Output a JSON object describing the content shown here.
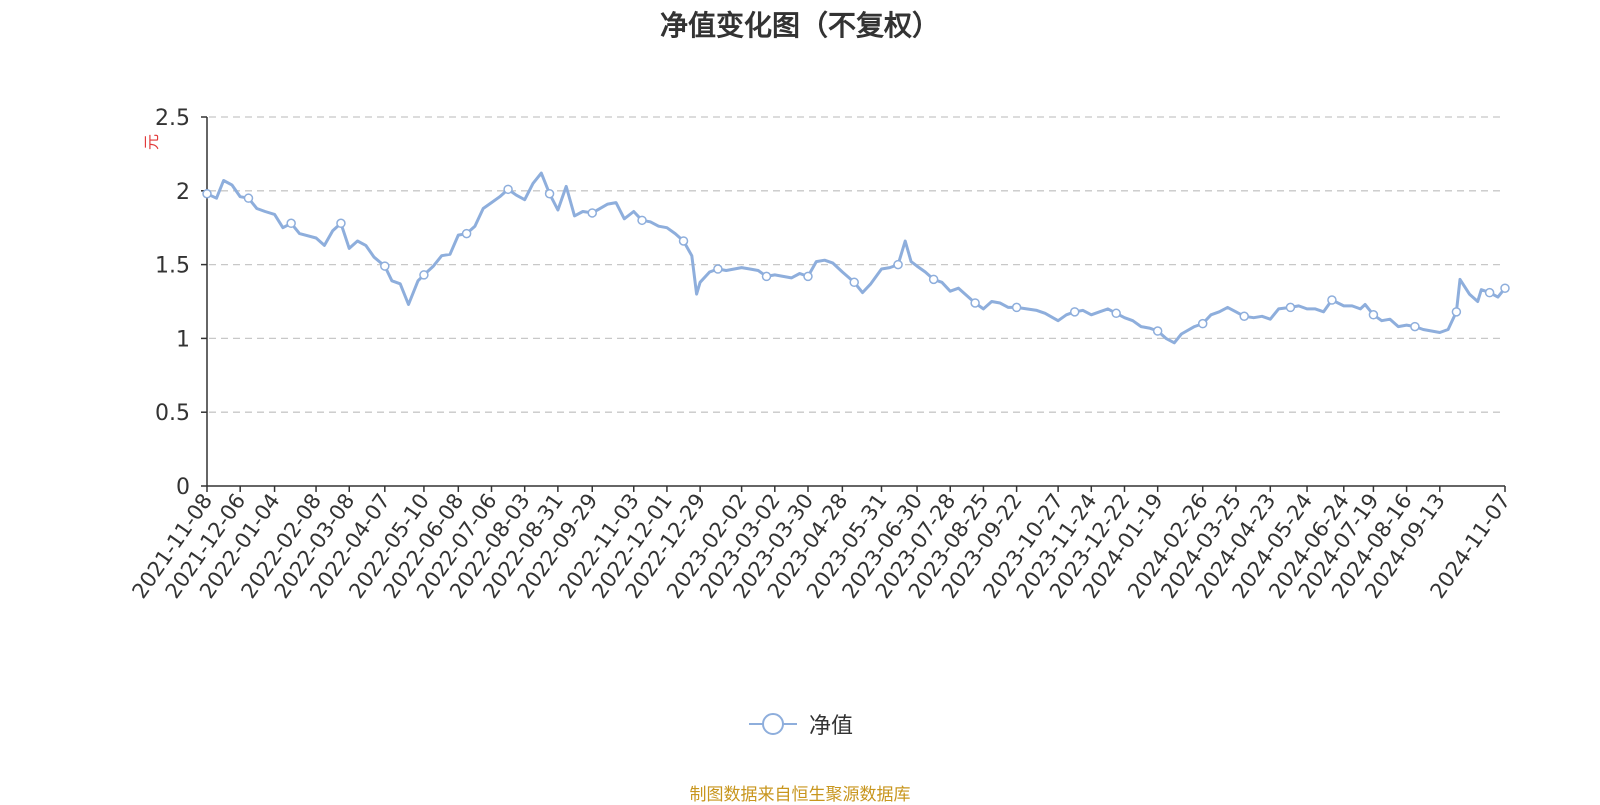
{
  "chart_data": {
    "type": "line",
    "title": "净值变化图（不复权）",
    "ylabel": "元",
    "ylim": [
      0,
      2.5
    ],
    "yticks": [
      "0",
      "0.5",
      "1",
      "1.5",
      "2",
      "2.5"
    ],
    "grid": true,
    "legend_position": "bottom",
    "x_tick_labels": [
      "2021-11-08",
      "2021-12-06",
      "2022-01-04",
      "2022-02-08",
      "2022-03-08",
      "2022-04-07",
      "2022-05-10",
      "2022-06-08",
      "2022-07-06",
      "2022-08-03",
      "2022-08-31",
      "2022-09-29",
      "2022-11-03",
      "2022-12-01",
      "2022-12-29",
      "2023-02-02",
      "2023-03-02",
      "2023-03-30",
      "2023-04-28",
      "2023-05-31",
      "2023-06-30",
      "2023-07-28",
      "2023-08-25",
      "2023-09-22",
      "2023-10-27",
      "2023-11-24",
      "2023-12-22",
      "2024-01-19",
      "2024-02-26",
      "2024-03-25",
      "2024-04-23",
      "2024-05-24",
      "2024-06-24",
      "2024-07-19",
      "2024-08-16",
      "2024-09-13",
      "2024-11-07"
    ],
    "series": [
      {
        "name": "净值",
        "color": "#8eaedc",
        "points": [
          [
            "2021-11-08",
            1.98
          ],
          [
            "2021-11-16",
            1.95
          ],
          [
            "2021-11-22",
            2.07
          ],
          [
            "2021-11-29",
            2.04
          ],
          [
            "2021-12-06",
            1.96
          ],
          [
            "2021-12-13",
            1.95
          ],
          [
            "2021-12-20",
            1.88
          ],
          [
            "2021-12-27",
            1.86
          ],
          [
            "2022-01-04",
            1.84
          ],
          [
            "2022-01-11",
            1.75
          ],
          [
            "2022-01-18",
            1.78
          ],
          [
            "2022-01-25",
            1.71
          ],
          [
            "2022-02-08",
            1.68
          ],
          [
            "2022-02-15",
            1.63
          ],
          [
            "2022-02-22",
            1.73
          ],
          [
            "2022-03-01",
            1.78
          ],
          [
            "2022-03-08",
            1.61
          ],
          [
            "2022-03-15",
            1.66
          ],
          [
            "2022-03-22",
            1.63
          ],
          [
            "2022-03-29",
            1.55
          ],
          [
            "2022-04-07",
            1.49
          ],
          [
            "2022-04-13",
            1.39
          ],
          [
            "2022-04-20",
            1.37
          ],
          [
            "2022-04-27",
            1.23
          ],
          [
            "2022-05-05",
            1.39
          ],
          [
            "2022-05-10",
            1.43
          ],
          [
            "2022-05-18",
            1.49
          ],
          [
            "2022-05-25",
            1.56
          ],
          [
            "2022-06-01",
            1.57
          ],
          [
            "2022-06-08",
            1.7
          ],
          [
            "2022-06-15",
            1.71
          ],
          [
            "2022-06-22",
            1.76
          ],
          [
            "2022-06-29",
            1.88
          ],
          [
            "2022-07-06",
            1.92
          ],
          [
            "2022-07-13",
            1.96
          ],
          [
            "2022-07-20",
            2.01
          ],
          [
            "2022-07-27",
            1.97
          ],
          [
            "2022-08-03",
            1.94
          ],
          [
            "2022-08-10",
            2.05
          ],
          [
            "2022-08-17",
            2.12
          ],
          [
            "2022-08-24",
            1.98
          ],
          [
            "2022-08-31",
            1.87
          ],
          [
            "2022-09-07",
            2.03
          ],
          [
            "2022-09-14",
            1.83
          ],
          [
            "2022-09-21",
            1.86
          ],
          [
            "2022-09-29",
            1.85
          ],
          [
            "2022-10-12",
            1.91
          ],
          [
            "2022-10-19",
            1.92
          ],
          [
            "2022-10-26",
            1.81
          ],
          [
            "2022-11-03",
            1.86
          ],
          [
            "2022-11-10",
            1.8
          ],
          [
            "2022-11-17",
            1.79
          ],
          [
            "2022-11-24",
            1.76
          ],
          [
            "2022-12-01",
            1.75
          ],
          [
            "2022-12-08",
            1.71
          ],
          [
            "2022-12-15",
            1.66
          ],
          [
            "2022-12-22",
            1.56
          ],
          [
            "2022-12-26",
            1.3
          ],
          [
            "2022-12-29",
            1.38
          ],
          [
            "2023-01-06",
            1.45
          ],
          [
            "2023-01-13",
            1.47
          ],
          [
            "2023-01-20",
            1.46
          ],
          [
            "2023-02-02",
            1.48
          ],
          [
            "2023-02-09",
            1.47
          ],
          [
            "2023-02-16",
            1.46
          ],
          [
            "2023-02-23",
            1.42
          ],
          [
            "2023-03-02",
            1.43
          ],
          [
            "2023-03-09",
            1.42
          ],
          [
            "2023-03-16",
            1.41
          ],
          [
            "2023-03-23",
            1.44
          ],
          [
            "2023-03-30",
            1.42
          ],
          [
            "2023-04-06",
            1.52
          ],
          [
            "2023-04-13",
            1.53
          ],
          [
            "2023-04-20",
            1.51
          ],
          [
            "2023-04-28",
            1.45
          ],
          [
            "2023-05-08",
            1.38
          ],
          [
            "2023-05-15",
            1.31
          ],
          [
            "2023-05-22",
            1.37
          ],
          [
            "2023-05-31",
            1.47
          ],
          [
            "2023-06-07",
            1.48
          ],
          [
            "2023-06-14",
            1.5
          ],
          [
            "2023-06-20",
            1.66
          ],
          [
            "2023-06-25",
            1.52
          ],
          [
            "2023-06-30",
            1.49
          ],
          [
            "2023-07-07",
            1.45
          ],
          [
            "2023-07-14",
            1.4
          ],
          [
            "2023-07-21",
            1.38
          ],
          [
            "2023-07-28",
            1.32
          ],
          [
            "2023-08-04",
            1.34
          ],
          [
            "2023-08-11",
            1.29
          ],
          [
            "2023-08-18",
            1.24
          ],
          [
            "2023-08-25",
            1.2
          ],
          [
            "2023-09-01",
            1.25
          ],
          [
            "2023-09-08",
            1.24
          ],
          [
            "2023-09-15",
            1.21
          ],
          [
            "2023-09-22",
            1.21
          ],
          [
            "2023-10-09",
            1.19
          ],
          [
            "2023-10-16",
            1.17
          ],
          [
            "2023-10-27",
            1.12
          ],
          [
            "2023-11-03",
            1.16
          ],
          [
            "2023-11-10",
            1.18
          ],
          [
            "2023-11-17",
            1.19
          ],
          [
            "2023-11-24",
            1.16
          ],
          [
            "2023-12-01",
            1.18
          ],
          [
            "2023-12-08",
            1.2
          ],
          [
            "2023-12-15",
            1.17
          ],
          [
            "2023-12-22",
            1.14
          ],
          [
            "2023-12-29",
            1.12
          ],
          [
            "2024-01-05",
            1.08
          ],
          [
            "2024-01-12",
            1.07
          ],
          [
            "2024-01-19",
            1.05
          ],
          [
            "2024-01-26",
            1.0
          ],
          [
            "2024-02-02",
            0.97
          ],
          [
            "2024-02-08",
            1.03
          ],
          [
            "2024-02-19",
            1.08
          ],
          [
            "2024-02-26",
            1.1
          ],
          [
            "2024-03-04",
            1.16
          ],
          [
            "2024-03-11",
            1.18
          ],
          [
            "2024-03-18",
            1.21
          ],
          [
            "2024-03-25",
            1.18
          ],
          [
            "2024-04-01",
            1.15
          ],
          [
            "2024-04-09",
            1.14
          ],
          [
            "2024-04-16",
            1.15
          ],
          [
            "2024-04-23",
            1.13
          ],
          [
            "2024-04-30",
            1.2
          ],
          [
            "2024-05-10",
            1.21
          ],
          [
            "2024-05-17",
            1.22
          ],
          [
            "2024-05-24",
            1.2
          ],
          [
            "2024-05-31",
            1.2
          ],
          [
            "2024-06-07",
            1.18
          ],
          [
            "2024-06-14",
            1.26
          ],
          [
            "2024-06-24",
            1.22
          ],
          [
            "2024-07-01",
            1.22
          ],
          [
            "2024-07-08",
            1.2
          ],
          [
            "2024-07-12",
            1.23
          ],
          [
            "2024-07-19",
            1.16
          ],
          [
            "2024-07-26",
            1.12
          ],
          [
            "2024-08-02",
            1.13
          ],
          [
            "2024-08-09",
            1.08
          ],
          [
            "2024-08-16",
            1.09
          ],
          [
            "2024-08-23",
            1.08
          ],
          [
            "2024-08-30",
            1.06
          ],
          [
            "2024-09-06",
            1.05
          ],
          [
            "2024-09-13",
            1.04
          ],
          [
            "2024-09-20",
            1.06
          ],
          [
            "2024-09-27",
            1.18
          ],
          [
            "2024-09-30",
            1.4
          ],
          [
            "2024-10-08",
            1.3
          ],
          [
            "2024-10-15",
            1.25
          ],
          [
            "2024-10-18",
            1.33
          ],
          [
            "2024-10-25",
            1.31
          ],
          [
            "2024-11-01",
            1.28
          ],
          [
            "2024-11-07",
            1.34
          ]
        ]
      }
    ]
  },
  "legend": {
    "label": "净值"
  },
  "source_note": "制图数据来自恒生聚源数据库"
}
